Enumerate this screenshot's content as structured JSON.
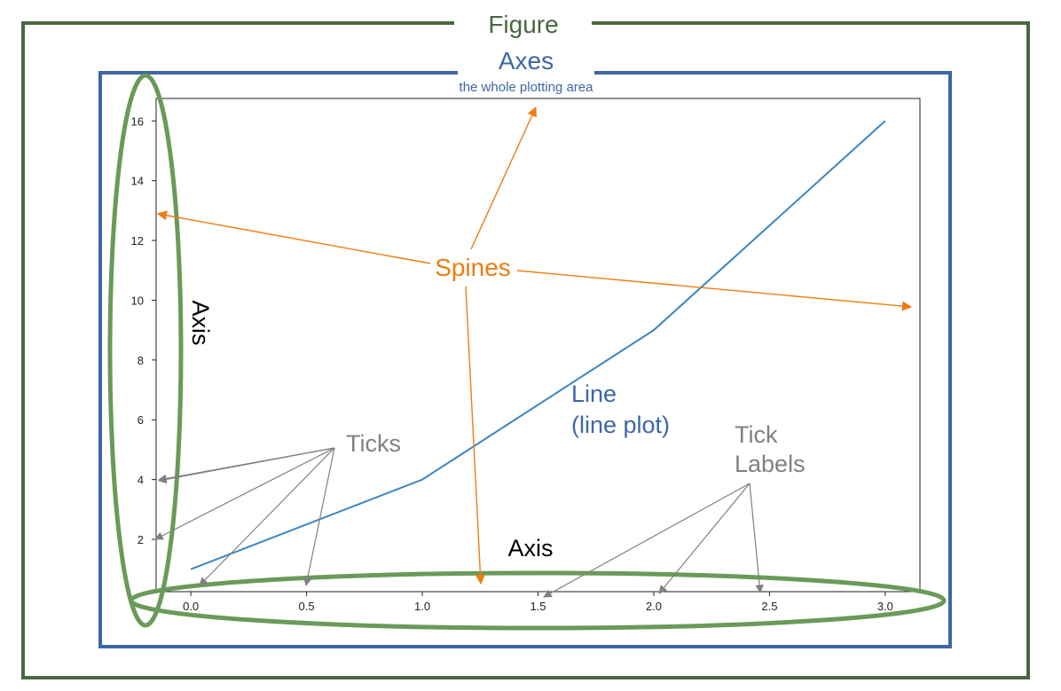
{
  "labels": {
    "figure": "Figure",
    "axes": "Axes",
    "axes_subtitle": "the whole plotting area",
    "spines": "Spines",
    "axis_vertical": "Axis",
    "axis_horizontal": "Axis",
    "line_1": "Line",
    "line_2": "(line plot)",
    "ticks": "Ticks",
    "tick_labels_1": "Tick",
    "tick_labels_2": "Labels"
  },
  "colors": {
    "figure_frame": "#4a6741",
    "axes_frame": "#3d67a5",
    "axis_ellipse": "#6a9a58",
    "spines_arrow": "#ec7d12",
    "tick_arrow": "#808080",
    "line": "#3a85c2",
    "axes_text": "#3d67a5",
    "figure_text": "#4a6741",
    "line_text": "#3d67a5"
  },
  "chart_data": {
    "type": "line",
    "x": [
      0.0,
      1.0,
      2.0,
      3.0
    ],
    "y": [
      1,
      4,
      9,
      16
    ],
    "xlim": [
      -0.15,
      3.15
    ],
    "ylim": [
      0.25,
      16.75
    ],
    "xticks": [
      0.0,
      0.5,
      1.0,
      1.5,
      2.0,
      2.5,
      3.0
    ],
    "xtick_labels": [
      "0.0",
      "0.5",
      "1.0",
      "1.5",
      "2.0",
      "2.5",
      "3.0"
    ],
    "yticks": [
      2,
      4,
      6,
      8,
      10,
      12,
      14,
      16
    ],
    "ytick_labels": [
      "2",
      "4",
      "6",
      "8",
      "10",
      "12",
      "14",
      "16"
    ],
    "grid": false
  }
}
